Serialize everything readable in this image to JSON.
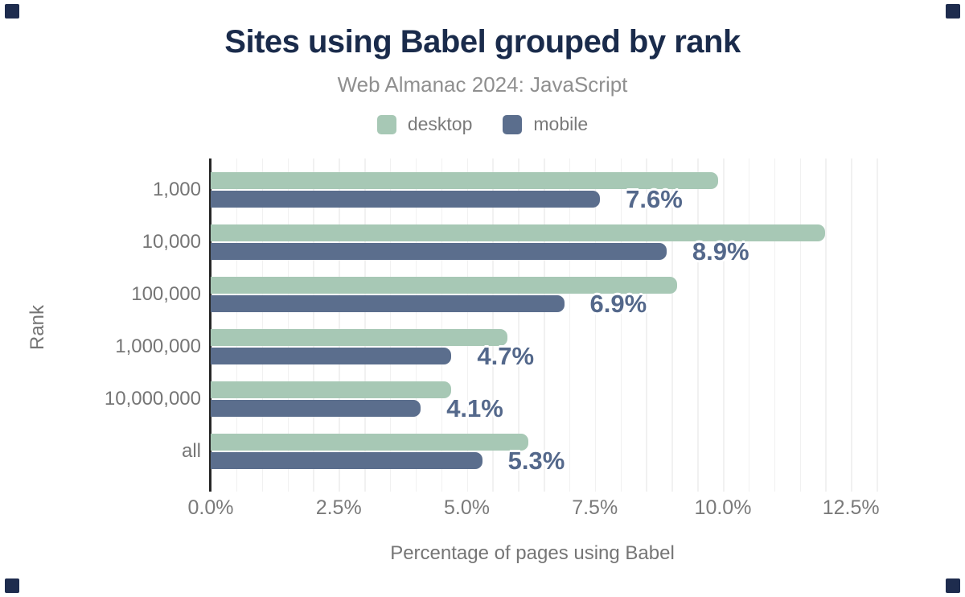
{
  "page": {
    "background": "#ffffff",
    "corner_marker_color": "#1e2c4e"
  },
  "header": {
    "title": "Sites using Babel grouped by rank",
    "subtitle": "Web Almanac 2024: JavaScript"
  },
  "legend": {
    "position": "top",
    "items": [
      {
        "label": "desktop",
        "color": "#a7c8b5"
      },
      {
        "label": "mobile",
        "color": "#5b6e8d"
      }
    ]
  },
  "chart_data": {
    "type": "bar",
    "orientation": "horizontal",
    "title": "Sites using Babel grouped by rank",
    "subtitle": "Web Almanac 2024: JavaScript",
    "categories": [
      "1,000",
      "10,000",
      "100,000",
      "1,000,000",
      "10,000,000",
      "all"
    ],
    "series": [
      {
        "name": "desktop",
        "color": "#a7c8b5",
        "values": [
          9.9,
          12.0,
          9.1,
          5.8,
          4.7,
          6.2
        ]
      },
      {
        "name": "mobile",
        "color": "#5b6e8d",
        "values": [
          7.6,
          8.9,
          6.9,
          4.7,
          4.1,
          5.3
        ]
      }
    ],
    "data_labels": {
      "on_series": "mobile",
      "values": [
        "7.6%",
        "8.9%",
        "6.9%",
        "4.7%",
        "4.1%",
        "5.3%"
      ],
      "color": "#54688b",
      "halo": "#ffffff"
    },
    "xlabel": "Percentage of pages using Babel",
    "ylabel": "Rank",
    "x_ticks": [
      {
        "label": "0.0%",
        "value": 0
      },
      {
        "label": "2.5%",
        "value": 2.5
      },
      {
        "label": "5.0%",
        "value": 5
      },
      {
        "label": "7.5%",
        "value": 7.5
      },
      {
        "label": "10.0%",
        "value": 10
      },
      {
        "label": "12.5%",
        "value": 12.5
      }
    ],
    "xlim": [
      0,
      13.125
    ],
    "grid": {
      "minor_step": 0.5,
      "max": 13.0,
      "color": "#f1f1f1",
      "visible": true
    },
    "axis_line_color": "#262626",
    "legend_position": "top"
  }
}
